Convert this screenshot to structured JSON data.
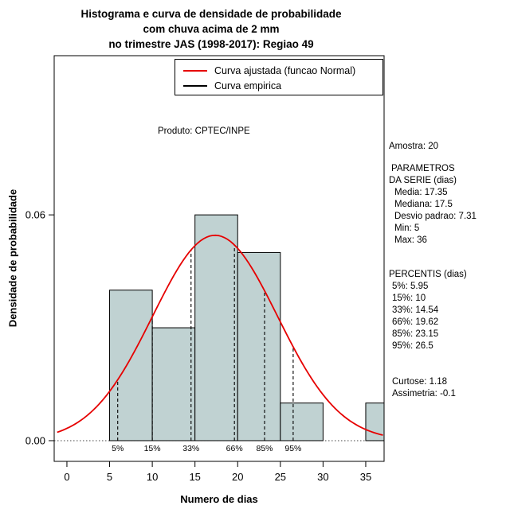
{
  "title": {
    "line1": "Histograma e curva de densidade de probabilidade",
    "line2": "com chuva acima de 2 mm",
    "line3": "no trimestre JAS (1998-2017): Regiao 49"
  },
  "legend": {
    "fitted_label": "Curva ajustada (funcao Normal)",
    "empirical_label": "Curva empirica",
    "fitted_color": "#e60000",
    "empirical_color": "#000000"
  },
  "annotation": "Produto: CPTEC/INPE",
  "stats_panel": {
    "amostra": "Amostra: 20",
    "params_header1": "PARAMETROS",
    "params_header2": "DA SERIE (dias)",
    "media": "Media: 17.35",
    "mediana": "Mediana: 17.5",
    "desvio": "Desvio padrao: 7.31",
    "min": "Min: 5",
    "max": "Max: 36",
    "percentis_header": "PERCENTIS (dias)",
    "p5": "5%: 5.95",
    "p15": "15%: 10",
    "p33": "33%: 14.54",
    "p66": "66%: 19.62",
    "p85": "85%: 23.15",
    "p95": "95%: 26.5",
    "curtose": "Curtose: 1.18",
    "assimetria": "Assimetria: -0.1"
  },
  "chart_data": {
    "type": "bar",
    "subtype": "histogram-with-normal-density-curve",
    "xlabel": "Numero de dias",
    "ylabel": "Densidade de probabilidade",
    "xlim": [
      -1.49,
      37.15
    ],
    "ylim": [
      -0.0055,
      0.1023
    ],
    "x_ticks": [
      0,
      5,
      10,
      15,
      20,
      25,
      30,
      35
    ],
    "y_ticks": [
      {
        "value": 0.0,
        "label": "0.00"
      },
      {
        "value": 0.06,
        "label": "0.06"
      }
    ],
    "bar_fill": "#c0d2d2",
    "bars": [
      {
        "x0": 5,
        "x1": 10,
        "density": 0.04
      },
      {
        "x0": 10,
        "x1": 15,
        "density": 0.03
      },
      {
        "x0": 15,
        "x1": 20,
        "density": 0.06
      },
      {
        "x0": 20,
        "x1": 25,
        "density": 0.05
      },
      {
        "x0": 25,
        "x1": 30,
        "density": 0.01
      },
      {
        "x0": 35,
        "x1": 40,
        "density": 0.01
      }
    ],
    "normal_curve": {
      "mean": 17.35,
      "sd": 7.31,
      "color": "#e60000"
    },
    "percentiles": [
      {
        "label": "5%",
        "x": 5.95
      },
      {
        "label": "15%",
        "x": 10
      },
      {
        "label": "33%",
        "x": 14.54
      },
      {
        "label": "66%",
        "x": 19.62
      },
      {
        "label": "85%",
        "x": 23.15
      },
      {
        "label": "95%",
        "x": 26.5
      }
    ],
    "grid": false,
    "legend_position": "top-right-inside"
  }
}
